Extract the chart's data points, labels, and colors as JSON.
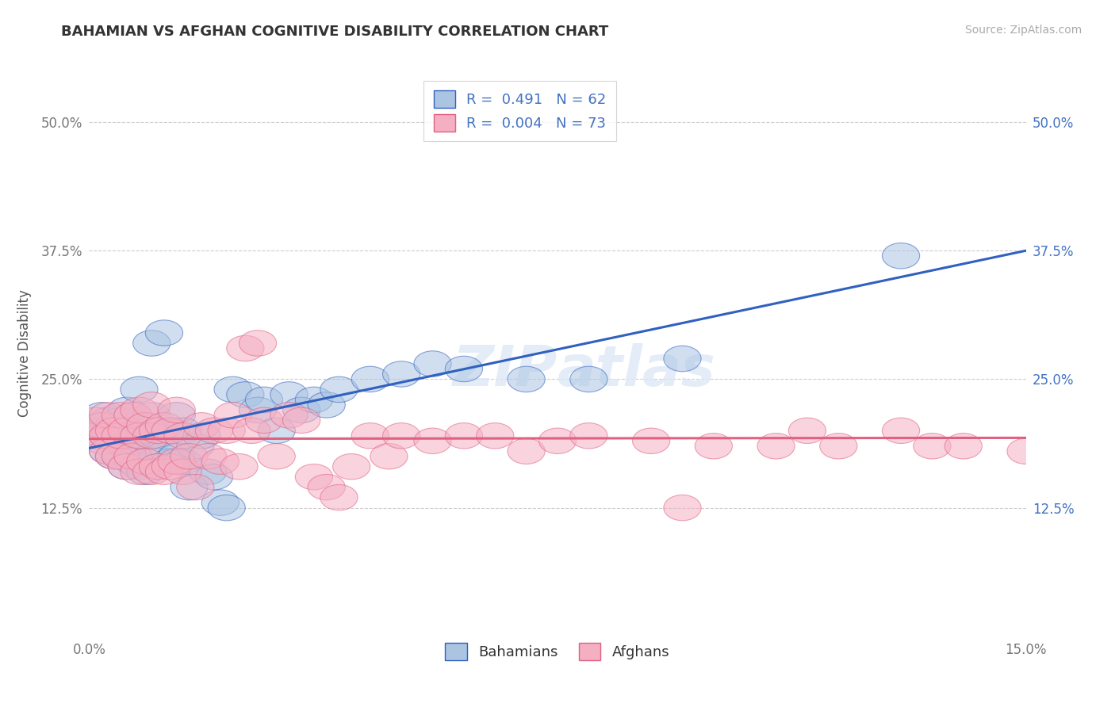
{
  "title": "BAHAMIAN VS AFGHAN COGNITIVE DISABILITY CORRELATION CHART",
  "source": "Source: ZipAtlas.com",
  "ylabel": "Cognitive Disability",
  "xlim": [
    0.0,
    0.15
  ],
  "ylim": [
    0.0,
    0.55
  ],
  "yticks": [
    0.125,
    0.25,
    0.375,
    0.5
  ],
  "ytick_labels": [
    "12.5%",
    "25.0%",
    "37.5%",
    "50.0%"
  ],
  "xticks": [
    0.0,
    0.15
  ],
  "xtick_labels": [
    "0.0%",
    "15.0%"
  ],
  "bahamian_color": "#aac4e2",
  "afghan_color": "#f5afc3",
  "line_blue": "#3060c0",
  "line_pink": "#e06080",
  "watermark": "ZIPatlas",
  "bahamian_R": 0.491,
  "bahamian_N": 62,
  "afghan_R": 0.004,
  "afghan_N": 73,
  "bah_line_x0": 0.0,
  "bah_line_y0": 0.183,
  "bah_line_x1": 0.15,
  "bah_line_y1": 0.375,
  "afg_line_x0": 0.0,
  "afg_line_y0": 0.192,
  "afg_line_x1": 0.15,
  "afg_line_y1": 0.193,
  "bahamian_points": [
    [
      0.001,
      0.2
    ],
    [
      0.001,
      0.195
    ],
    [
      0.002,
      0.195
    ],
    [
      0.002,
      0.215
    ],
    [
      0.003,
      0.18
    ],
    [
      0.003,
      0.195
    ],
    [
      0.003,
      0.21
    ],
    [
      0.004,
      0.175
    ],
    [
      0.004,
      0.19
    ],
    [
      0.004,
      0.205
    ],
    [
      0.005,
      0.175
    ],
    [
      0.005,
      0.19
    ],
    [
      0.005,
      0.21
    ],
    [
      0.006,
      0.165
    ],
    [
      0.006,
      0.185
    ],
    [
      0.006,
      0.22
    ],
    [
      0.007,
      0.17
    ],
    [
      0.007,
      0.19
    ],
    [
      0.007,
      0.215
    ],
    [
      0.008,
      0.165
    ],
    [
      0.008,
      0.195
    ],
    [
      0.008,
      0.24
    ],
    [
      0.009,
      0.16
    ],
    [
      0.009,
      0.2
    ],
    [
      0.01,
      0.175
    ],
    [
      0.01,
      0.215
    ],
    [
      0.01,
      0.285
    ],
    [
      0.011,
      0.165
    ],
    [
      0.011,
      0.195
    ],
    [
      0.012,
      0.18
    ],
    [
      0.012,
      0.295
    ],
    [
      0.013,
      0.17
    ],
    [
      0.013,
      0.2
    ],
    [
      0.014,
      0.175
    ],
    [
      0.014,
      0.215
    ],
    [
      0.015,
      0.17
    ],
    [
      0.015,
      0.2
    ],
    [
      0.016,
      0.145
    ],
    [
      0.017,
      0.185
    ],
    [
      0.018,
      0.195
    ],
    [
      0.019,
      0.16
    ],
    [
      0.02,
      0.155
    ],
    [
      0.021,
      0.13
    ],
    [
      0.022,
      0.125
    ],
    [
      0.023,
      0.24
    ],
    [
      0.025,
      0.235
    ],
    [
      0.027,
      0.22
    ],
    [
      0.028,
      0.23
    ],
    [
      0.03,
      0.2
    ],
    [
      0.032,
      0.235
    ],
    [
      0.034,
      0.22
    ],
    [
      0.036,
      0.23
    ],
    [
      0.038,
      0.225
    ],
    [
      0.04,
      0.24
    ],
    [
      0.045,
      0.25
    ],
    [
      0.05,
      0.255
    ],
    [
      0.055,
      0.265
    ],
    [
      0.06,
      0.26
    ],
    [
      0.07,
      0.25
    ],
    [
      0.08,
      0.25
    ],
    [
      0.095,
      0.27
    ],
    [
      0.13,
      0.37
    ]
  ],
  "afghan_points": [
    [
      0.001,
      0.195
    ],
    [
      0.001,
      0.21
    ],
    [
      0.002,
      0.19
    ],
    [
      0.002,
      0.205
    ],
    [
      0.003,
      0.18
    ],
    [
      0.003,
      0.195
    ],
    [
      0.003,
      0.215
    ],
    [
      0.004,
      0.175
    ],
    [
      0.004,
      0.2
    ],
    [
      0.005,
      0.175
    ],
    [
      0.005,
      0.195
    ],
    [
      0.005,
      0.215
    ],
    [
      0.006,
      0.165
    ],
    [
      0.006,
      0.2
    ],
    [
      0.007,
      0.175
    ],
    [
      0.007,
      0.215
    ],
    [
      0.008,
      0.16
    ],
    [
      0.008,
      0.195
    ],
    [
      0.008,
      0.22
    ],
    [
      0.009,
      0.17
    ],
    [
      0.009,
      0.205
    ],
    [
      0.01,
      0.16
    ],
    [
      0.01,
      0.195
    ],
    [
      0.01,
      0.225
    ],
    [
      0.011,
      0.165
    ],
    [
      0.011,
      0.2
    ],
    [
      0.012,
      0.16
    ],
    [
      0.012,
      0.205
    ],
    [
      0.013,
      0.165
    ],
    [
      0.013,
      0.2
    ],
    [
      0.014,
      0.17
    ],
    [
      0.014,
      0.22
    ],
    [
      0.015,
      0.16
    ],
    [
      0.015,
      0.195
    ],
    [
      0.016,
      0.175
    ],
    [
      0.017,
      0.145
    ],
    [
      0.018,
      0.205
    ],
    [
      0.019,
      0.175
    ],
    [
      0.02,
      0.2
    ],
    [
      0.021,
      0.17
    ],
    [
      0.022,
      0.2
    ],
    [
      0.023,
      0.215
    ],
    [
      0.024,
      0.165
    ],
    [
      0.025,
      0.28
    ],
    [
      0.026,
      0.2
    ],
    [
      0.027,
      0.285
    ],
    [
      0.028,
      0.21
    ],
    [
      0.03,
      0.175
    ],
    [
      0.032,
      0.215
    ],
    [
      0.034,
      0.21
    ],
    [
      0.036,
      0.155
    ],
    [
      0.038,
      0.145
    ],
    [
      0.04,
      0.135
    ],
    [
      0.042,
      0.165
    ],
    [
      0.045,
      0.195
    ],
    [
      0.048,
      0.175
    ],
    [
      0.05,
      0.195
    ],
    [
      0.055,
      0.19
    ],
    [
      0.06,
      0.195
    ],
    [
      0.065,
      0.195
    ],
    [
      0.07,
      0.18
    ],
    [
      0.075,
      0.19
    ],
    [
      0.08,
      0.195
    ],
    [
      0.09,
      0.19
    ],
    [
      0.095,
      0.125
    ],
    [
      0.1,
      0.185
    ],
    [
      0.11,
      0.185
    ],
    [
      0.115,
      0.2
    ],
    [
      0.12,
      0.185
    ],
    [
      0.13,
      0.2
    ],
    [
      0.135,
      0.185
    ],
    [
      0.14,
      0.185
    ],
    [
      0.15,
      0.18
    ]
  ]
}
